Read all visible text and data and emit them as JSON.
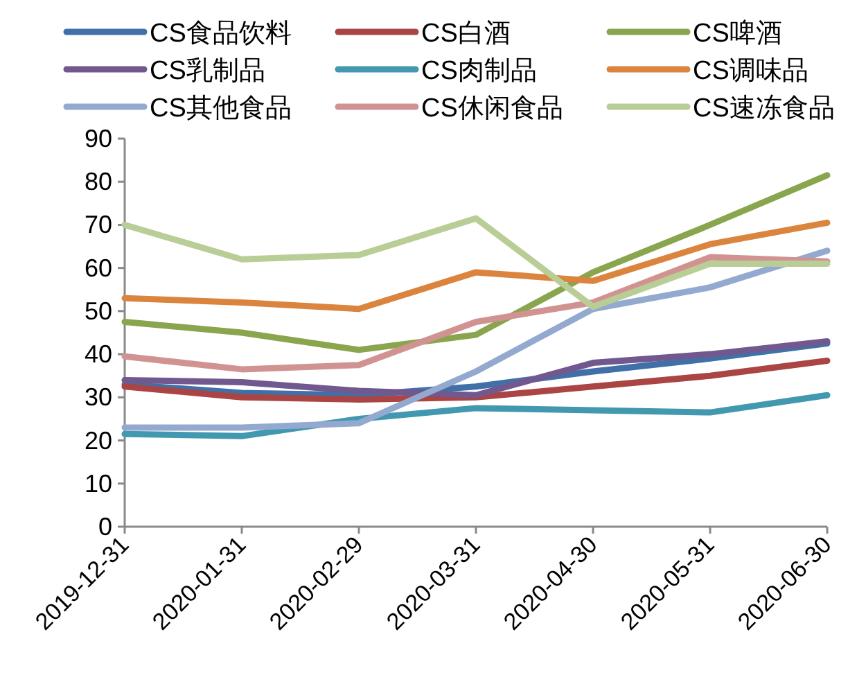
{
  "chart_data": {
    "type": "line",
    "categories": [
      "2019-12-31",
      "2020-01-31",
      "2020-02-29",
      "2020-03-31",
      "2020-04-30",
      "2020-05-31",
      "2020-06-30"
    ],
    "ylim": [
      0,
      90
    ],
    "yticks": [
      0,
      10,
      20,
      30,
      40,
      50,
      60,
      70,
      80,
      90
    ],
    "legend": "top",
    "grid": false,
    "series": [
      {
        "name": "CS食品饮料",
        "color": "#4170a8",
        "values": [
          33,
          31,
          30.5,
          32.5,
          36,
          39,
          42.5
        ]
      },
      {
        "name": "CS白酒",
        "color": "#aa4543",
        "values": [
          32.5,
          30,
          29.5,
          30,
          32.5,
          35,
          38.5
        ]
      },
      {
        "name": "CS啤酒",
        "color": "#89a54e",
        "values": [
          47.5,
          45,
          41,
          44.5,
          59,
          70,
          81.5
        ]
      },
      {
        "name": "CS乳制品",
        "color": "#71588f",
        "values": [
          34,
          33.5,
          31.5,
          30.5,
          38,
          40,
          43
        ]
      },
      {
        "name": "CS肉制品",
        "color": "#4198af",
        "values": [
          21.5,
          21,
          25,
          27.5,
          27,
          26.5,
          30.5
        ]
      },
      {
        "name": "CS调味品",
        "color": "#db843d",
        "values": [
          53,
          52,
          50.5,
          59,
          57,
          65.5,
          70.5
        ]
      },
      {
        "name": "CS其他食品",
        "color": "#93a9cf",
        "values": [
          23,
          23,
          24,
          36,
          50.5,
          55.5,
          64
        ]
      },
      {
        "name": "CS休闲食品",
        "color": "#d19392",
        "values": [
          39.5,
          36.5,
          37.5,
          47.5,
          52,
          62.5,
          61.5
        ]
      },
      {
        "name": "CS速冻食品",
        "color": "#b9cd96",
        "values": [
          70,
          62,
          63,
          71.5,
          51,
          61,
          61
        ]
      }
    ]
  }
}
